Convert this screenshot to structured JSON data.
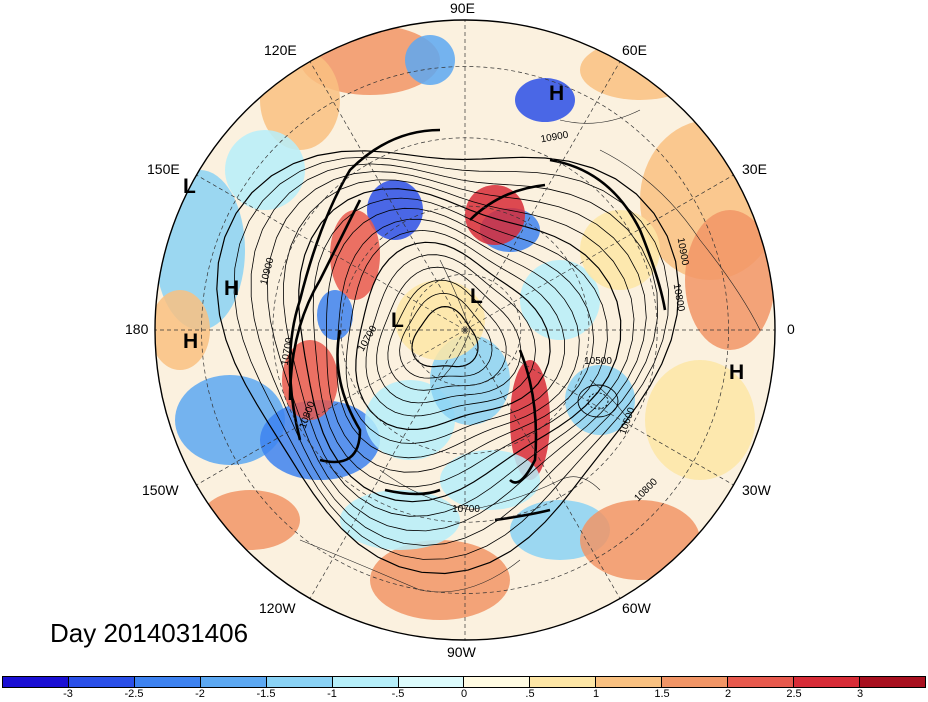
{
  "date_label": "Day 2014031406",
  "longitude_labels": {
    "lon_90e": "90E",
    "lon_60e": "60E",
    "lon_30e": "30E",
    "lon_0": "0",
    "lon_30w": "30W",
    "lon_60w": "60W",
    "lon_90w": "90W",
    "lon_120w": "120W",
    "lon_150w": "150W",
    "lon_180": "180",
    "lon_150e": "150E",
    "lon_120e": "120E"
  },
  "pressure_centers": [
    {
      "label": "H"
    },
    {
      "label": "L"
    },
    {
      "label": "H"
    },
    {
      "label": "H"
    },
    {
      "label": "L"
    },
    {
      "label": "L"
    },
    {
      "label": "H"
    }
  ],
  "contour_labels": [
    "10900",
    "10900",
    "10900",
    "10800",
    "10700",
    "10800",
    "10500",
    "10600",
    "10800",
    "10700",
    "10700"
  ],
  "colorbar": {
    "colors": [
      "#1a0fd4",
      "#2a4fe8",
      "#3d82f0",
      "#5ca8f2",
      "#8ad2f5",
      "#b6effa",
      "#dcfbfc",
      "#fffbe2",
      "#fde6a6",
      "#f9c181",
      "#f19566",
      "#e7594d",
      "#d72c37",
      "#a8101f"
    ],
    "tick_labels": [
      "-3",
      "-2.5",
      "-2",
      "-1.5",
      "-1",
      "-.5",
      "0",
      ".5",
      "1",
      "1.5",
      "2",
      "2.5",
      "3"
    ]
  }
}
